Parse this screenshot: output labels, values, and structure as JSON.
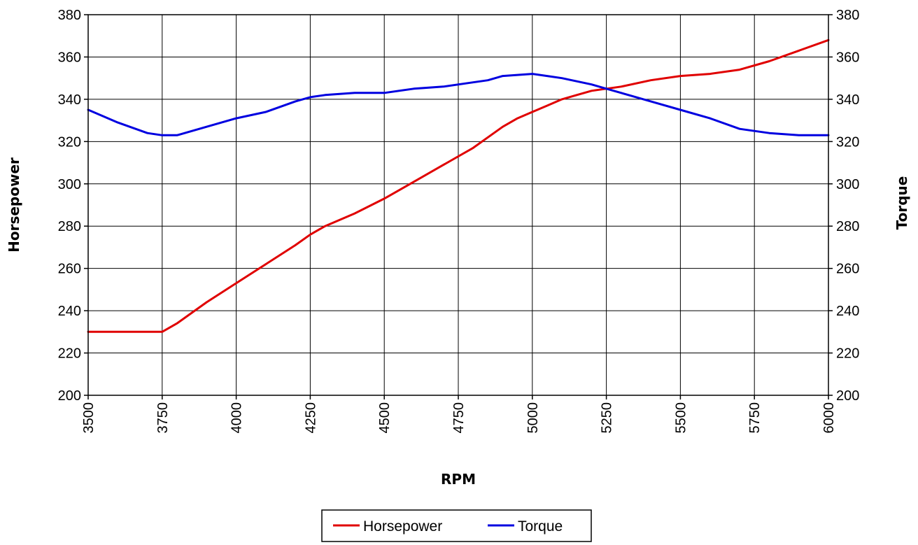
{
  "chart_data": {
    "type": "line",
    "xlabel": "RPM",
    "ylabel_left": "Horsepower",
    "ylabel_right": "Torque",
    "xlim": [
      3500,
      6000
    ],
    "ylim": [
      200,
      380
    ],
    "x_ticks": [
      "3500",
      "3750",
      "4000",
      "4250",
      "4500",
      "4750",
      "5000",
      "5250",
      "5500",
      "5750",
      "6000"
    ],
    "y_ticks": [
      "200",
      "220",
      "240",
      "260",
      "280",
      "300",
      "320",
      "340",
      "360",
      "380"
    ],
    "grid": true,
    "legend_position": "bottom-center",
    "series": [
      {
        "name": "Horsepower",
        "color": "#e00000",
        "axis": "left",
        "x": [
          3500,
          3600,
          3700,
          3750,
          3800,
          3850,
          3900,
          4000,
          4100,
          4200,
          4250,
          4300,
          4400,
          4500,
          4600,
          4700,
          4750,
          4800,
          4850,
          4900,
          4950,
          5000,
          5050,
          5100,
          5150,
          5200,
          5250,
          5300,
          5400,
          5500,
          5600,
          5700,
          5800,
          5900,
          6000
        ],
        "values": [
          230,
          230,
          230,
          230,
          234,
          239,
          244,
          253,
          262,
          271,
          276,
          280,
          286,
          293,
          301,
          309,
          313,
          317,
          322,
          327,
          331,
          334,
          337,
          340,
          342,
          344,
          345,
          346,
          349,
          351,
          352,
          354,
          358,
          363,
          368
        ]
      },
      {
        "name": "Torque",
        "color": "#0000e0",
        "axis": "right",
        "x": [
          3500,
          3600,
          3700,
          3750,
          3800,
          3900,
          4000,
          4100,
          4200,
          4250,
          4300,
          4400,
          4500,
          4600,
          4700,
          4800,
          4850,
          4900,
          5000,
          5050,
          5100,
          5200,
          5250,
          5300,
          5400,
          5500,
          5600,
          5700,
          5750,
          5800,
          5900,
          6000
        ],
        "values": [
          335,
          329,
          324,
          323,
          323,
          327,
          331,
          334,
          339,
          341,
          342,
          343,
          343,
          345,
          346,
          348,
          349,
          351,
          352,
          351,
          350,
          347,
          345,
          343,
          339,
          335,
          331,
          326,
          325,
          324,
          323,
          323
        ]
      }
    ]
  }
}
